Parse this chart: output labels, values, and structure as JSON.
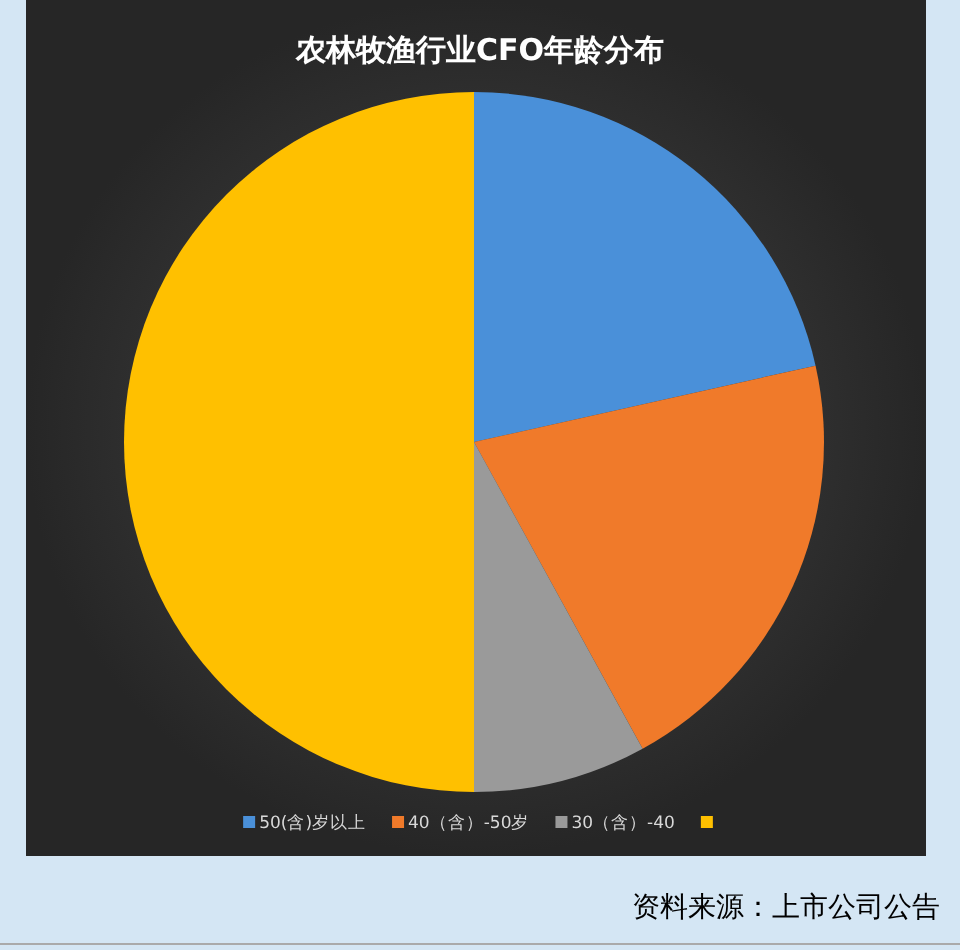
{
  "chart_data": {
    "type": "pie",
    "title": "农林牧渔行业CFO年龄分布",
    "categories": [
      "50(含)岁以上",
      "40（含）-50岁",
      "30（含）-40",
      null
    ],
    "values": [
      21.5,
      20.5,
      8,
      50
    ],
    "colors": [
      "#4a90d9",
      "#f07a2a",
      "#9a9a9a",
      "#ffc000"
    ],
    "legend": "bottom",
    "annotations": [
      "资料来源：上市公司公告"
    ]
  }
}
